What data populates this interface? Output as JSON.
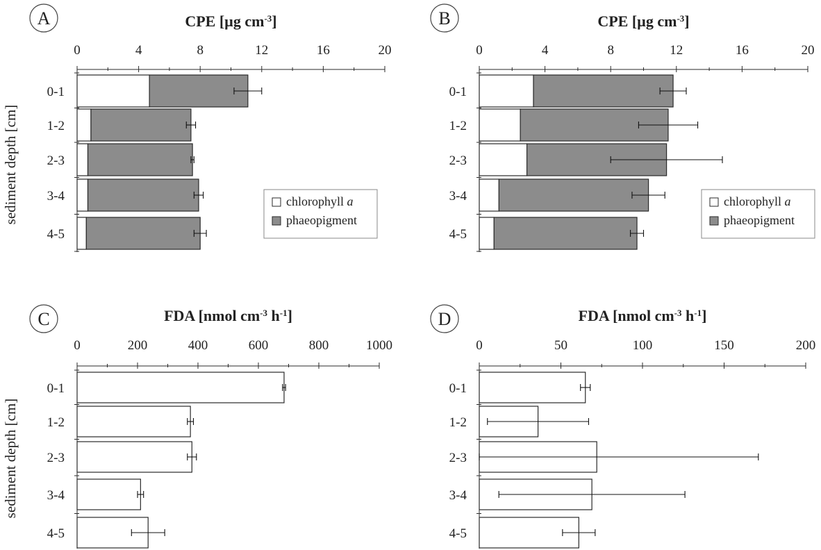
{
  "panel_letters": [
    "A",
    "B",
    "C",
    "D"
  ],
  "ylabel": "sediment depth [cm]",
  "colors": {
    "chlorophyll": "#ffffff",
    "phaeopigment": "#8c8c8c",
    "fda_bar": "#ffffff",
    "stroke": "#2a2a2a"
  },
  "chart_data": [
    {
      "panel": "A",
      "type": "bar",
      "orientation": "horizontal",
      "stacked": true,
      "title": "CPE [µg cm⁻³]",
      "title_main": "CPE [µg cm",
      "title_sup": "-3",
      "title_tail": "]",
      "categories": [
        "0-1",
        "1-2",
        "2-3",
        "3-4",
        "4-5"
      ],
      "xlim": [
        0,
        20
      ],
      "xticks": [
        0,
        4,
        8,
        12,
        16,
        20
      ],
      "legend": {
        "position": "lower-right",
        "entries": [
          "chlorophyll a",
          "phaeopigment"
        ]
      },
      "series": [
        {
          "name": "chlorophyll a",
          "values": [
            4.7,
            0.9,
            0.7,
            0.7,
            0.6
          ]
        },
        {
          "name": "phaeopigment",
          "values": [
            6.4,
            6.5,
            6.8,
            7.2,
            7.4
          ]
        }
      ],
      "totals": [
        11.1,
        7.4,
        7.5,
        7.9,
        8.0
      ],
      "error": [
        0.9,
        0.3,
        0.1,
        0.3,
        0.4
      ]
    },
    {
      "panel": "B",
      "type": "bar",
      "orientation": "horizontal",
      "stacked": true,
      "title": "CPE [µg cm⁻³]",
      "title_main": "CPE [µg cm",
      "title_sup": "-3",
      "title_tail": "]",
      "categories": [
        "0-1",
        "1-2",
        "2-3",
        "3-4",
        "4-5"
      ],
      "xlim": [
        0,
        20
      ],
      "xticks": [
        0,
        4,
        8,
        12,
        16,
        20
      ],
      "legend": {
        "position": "lower-right",
        "entries": [
          "chlorophyll a",
          "phaeopigment"
        ]
      },
      "series": [
        {
          "name": "chlorophyll a",
          "values": [
            3.3,
            2.5,
            2.9,
            1.2,
            0.9
          ]
        },
        {
          "name": "phaeopigment",
          "values": [
            8.5,
            9.0,
            8.5,
            9.1,
            8.7
          ]
        }
      ],
      "totals": [
        11.8,
        11.5,
        11.4,
        10.3,
        9.6
      ],
      "error": [
        0.8,
        1.8,
        3.4,
        1.0,
        0.4
      ]
    },
    {
      "panel": "C",
      "type": "bar",
      "orientation": "horizontal",
      "title": "FDA [nmol cm⁻³ h⁻¹]",
      "title_main": "FDA [nmol cm",
      "title_sup": "-3",
      "title_mid": " h",
      "title_sup2": "-1",
      "title_tail": "]",
      "categories": [
        "0-1",
        "1-2",
        "2-3",
        "3-4",
        "4-5"
      ],
      "xlim": [
        0,
        1000
      ],
      "xticks": [
        0,
        200,
        400,
        600,
        800,
        1000
      ],
      "values": [
        685,
        375,
        380,
        210,
        235
      ],
      "error": [
        5,
        10,
        15,
        10,
        55
      ]
    },
    {
      "panel": "D",
      "type": "bar",
      "orientation": "horizontal",
      "title": "FDA [nmol cm⁻³ h⁻¹]",
      "title_main": "FDA [nmol cm",
      "title_sup": "-3",
      "title_mid": " h",
      "title_sup2": "-1",
      "title_tail": "]",
      "categories": [
        "0-1",
        "1-2",
        "2-3",
        "3-4",
        "4-5"
      ],
      "xlim": [
        0,
        200
      ],
      "xticks": [
        0,
        50,
        100,
        150,
        200
      ],
      "values": [
        65,
        36,
        72,
        69,
        61
      ],
      "error": [
        3,
        31,
        99,
        57,
        10
      ]
    }
  ]
}
